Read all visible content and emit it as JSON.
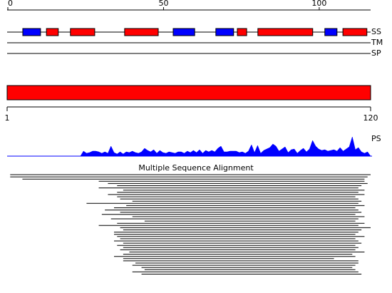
{
  "ruler": {
    "xlim": [
      0,
      116.5
    ],
    "ticks": [
      0,
      50,
      100
    ]
  },
  "tracks": {
    "labels": [
      "SS",
      "TM",
      "SP"
    ],
    "ss_elements": [
      {
        "start": 4.8,
        "end": 10.5,
        "color": "#0000ff"
      },
      {
        "start": 12.4,
        "end": 16.2,
        "color": "#ff0000"
      },
      {
        "start": 20.1,
        "end": 27.9,
        "color": "#ff0000"
      },
      {
        "start": 37.5,
        "end": 48.3,
        "color": "#ff0000"
      },
      {
        "start": 53.1,
        "end": 60,
        "color": "#0000ff"
      },
      {
        "start": 66.8,
        "end": 72.5,
        "color": "#0000ff"
      },
      {
        "start": 73.7,
        "end": 76.7,
        "color": "#ff0000"
      },
      {
        "start": 80.3,
        "end": 97.9,
        "color": "#ff0000"
      },
      {
        "start": 101.8,
        "end": 105.7,
        "color": "#0000ff"
      },
      {
        "start": 107.6,
        "end": 115.3,
        "color": "#ff0000"
      }
    ]
  },
  "domain": {
    "start": 1,
    "end": 120,
    "color": "#ff0000"
  },
  "ps": {
    "label": "PS",
    "color": "#0000ff",
    "values": [
      0,
      0,
      0,
      0,
      0,
      0,
      0,
      0,
      0,
      0,
      0,
      0,
      0,
      0,
      0,
      0,
      0,
      0,
      0,
      0,
      0,
      0,
      0,
      0,
      0,
      7,
      4,
      5,
      7,
      7,
      6,
      4,
      6,
      4,
      14,
      5,
      3,
      6,
      3,
      6,
      5,
      7,
      5,
      4,
      6,
      11,
      8,
      6,
      9,
      4,
      8,
      5,
      4,
      6,
      5,
      4,
      6,
      6,
      4,
      7,
      5,
      8,
      5,
      9,
      4,
      8,
      6,
      8,
      6,
      11,
      14,
      6,
      6,
      7,
      7,
      7,
      5,
      6,
      4,
      7,
      16,
      5,
      15,
      4,
      8,
      10,
      12,
      17,
      14,
      7,
      10,
      13,
      5,
      9,
      10,
      4,
      8,
      11,
      6,
      10,
      22,
      14,
      10,
      8,
      9,
      7,
      8,
      9,
      7,
      12,
      7,
      10,
      13,
      27,
      9,
      12,
      6,
      4,
      6,
      0
    ]
  },
  "msa": {
    "title": "Multiple Sequence Alignment",
    "rows": [
      [
        2,
        120
      ],
      [
        2,
        119
      ],
      [
        6,
        118
      ],
      [
        31,
        118
      ],
      [
        34,
        119
      ],
      [
        37,
        117
      ],
      [
        31,
        116
      ],
      [
        39,
        118
      ],
      [
        37,
        116
      ],
      [
        34,
        118
      ],
      [
        37,
        115
      ],
      [
        38,
        116
      ],
      [
        42,
        117
      ],
      [
        27,
        116
      ],
      [
        40,
        118
      ],
      [
        36,
        115
      ],
      [
        33,
        116
      ],
      [
        38,
        117
      ],
      [
        32,
        115
      ],
      [
        42,
        118
      ],
      [
        35,
        116
      ],
      [
        46,
        115
      ],
      [
        37,
        118
      ],
      [
        31,
        116
      ],
      [
        38,
        120
      ],
      [
        39,
        117
      ],
      [
        36,
        116
      ],
      [
        36,
        115
      ],
      [
        37,
        118
      ],
      [
        38,
        115
      ],
      [
        36,
        116
      ],
      [
        39,
        117
      ],
      [
        37,
        115
      ],
      [
        39,
        116
      ],
      [
        38,
        115
      ],
      [
        41,
        118
      ],
      [
        39,
        114
      ],
      [
        36,
        115
      ],
      [
        39,
        108
      ],
      [
        39,
        116
      ],
      [
        43,
        116
      ],
      [
        42,
        115
      ],
      [
        45,
        114
      ],
      [
        46,
        115
      ],
      [
        42,
        116
      ],
      [
        45,
        117
      ]
    ]
  }
}
